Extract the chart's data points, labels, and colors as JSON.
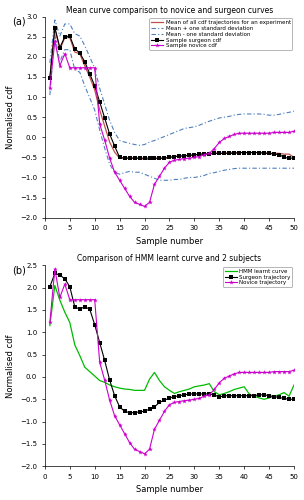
{
  "title_a": "Mean curve comparison to novice and surgeon curves",
  "title_b": "Comparison of HMM learnt curve and 2 subjects",
  "xlabel": "Sample number",
  "ylabel": "Normalised cdf",
  "xlim": [
    0,
    50
  ],
  "ylim_a": [
    -2,
    3
  ],
  "ylim_b": [
    -2,
    2.5
  ],
  "xticks": [
    0,
    5,
    10,
    15,
    20,
    25,
    30,
    35,
    40,
    45,
    50
  ],
  "yticks_a": [
    -2,
    -1.5,
    -1,
    -0.5,
    0,
    0.5,
    1,
    1.5,
    2,
    2.5,
    3
  ],
  "yticks_b": [
    -2,
    -1.5,
    -1,
    -0.5,
    0,
    0.5,
    1,
    1.5,
    2,
    2.5
  ],
  "mean_color": "#c0504d",
  "std_color": "#4f81bd",
  "surgeon_color": "#000000",
  "novice_color": "#cc00cc",
  "hmm_color": "#00bb00",
  "x": [
    1,
    2,
    3,
    4,
    5,
    6,
    7,
    8,
    9,
    10,
    11,
    12,
    13,
    14,
    15,
    16,
    17,
    18,
    19,
    20,
    21,
    22,
    23,
    24,
    25,
    26,
    27,
    28,
    29,
    30,
    31,
    32,
    33,
    34,
    35,
    36,
    37,
    38,
    39,
    40,
    41,
    42,
    43,
    44,
    45,
    46,
    47,
    48,
    49,
    50
  ],
  "mean": [
    1.47,
    2.72,
    2.18,
    2.48,
    2.48,
    2.12,
    2.08,
    1.78,
    1.5,
    1.18,
    0.68,
    0.28,
    -0.12,
    -0.37,
    -0.52,
    -0.52,
    -0.52,
    -0.52,
    -0.52,
    -0.55,
    -0.55,
    -0.53,
    -0.53,
    -0.52,
    -0.5,
    -0.48,
    -0.47,
    -0.46,
    -0.45,
    -0.44,
    -0.42,
    -0.41,
    -0.4,
    -0.4,
    -0.4,
    -0.4,
    -0.38,
    -0.38,
    -0.38,
    -0.38,
    -0.38,
    -0.38,
    -0.38,
    -0.38,
    -0.4,
    -0.4,
    -0.4,
    -0.42,
    -0.42,
    -0.5
  ],
  "std_plus": [
    1.85,
    2.92,
    2.52,
    2.82,
    2.82,
    2.58,
    2.52,
    2.28,
    2.0,
    1.72,
    1.22,
    0.82,
    0.42,
    0.12,
    -0.08,
    -0.12,
    -0.15,
    -0.18,
    -0.2,
    -0.18,
    -0.12,
    -0.08,
    -0.03,
    0.02,
    0.07,
    0.12,
    0.17,
    0.22,
    0.24,
    0.26,
    0.3,
    0.35,
    0.4,
    0.44,
    0.48,
    0.5,
    0.52,
    0.55,
    0.57,
    0.58,
    0.58,
    0.58,
    0.58,
    0.57,
    0.55,
    0.55,
    0.57,
    0.6,
    0.62,
    0.65
  ],
  "std_minus": [
    1.05,
    2.55,
    1.88,
    2.18,
    2.18,
    1.68,
    1.62,
    1.28,
    0.98,
    0.68,
    0.18,
    -0.27,
    -0.67,
    -0.87,
    -0.92,
    -0.88,
    -0.85,
    -0.87,
    -0.87,
    -0.92,
    -0.97,
    -1.02,
    -1.07,
    -1.07,
    -1.07,
    -1.05,
    -1.05,
    -1.02,
    -1.0,
    -1.0,
    -0.98,
    -0.95,
    -0.9,
    -0.88,
    -0.85,
    -0.82,
    -0.8,
    -0.78,
    -0.77,
    -0.77,
    -0.77,
    -0.77,
    -0.77,
    -0.77,
    -0.77,
    -0.77,
    -0.77,
    -0.77,
    -0.77,
    -0.77
  ],
  "surgeon_a": [
    1.48,
    2.73,
    2.23,
    2.5,
    2.52,
    2.2,
    2.1,
    1.88,
    1.58,
    1.28,
    0.88,
    0.48,
    0.08,
    -0.22,
    -0.5,
    -0.52,
    -0.52,
    -0.52,
    -0.52,
    -0.52,
    -0.52,
    -0.52,
    -0.52,
    -0.52,
    -0.5,
    -0.48,
    -0.47,
    -0.46,
    -0.45,
    -0.44,
    -0.42,
    -0.42,
    -0.42,
    -0.4,
    -0.4,
    -0.4,
    -0.4,
    -0.4,
    -0.38,
    -0.38,
    -0.38,
    -0.38,
    -0.38,
    -0.4,
    -0.4,
    -0.42,
    -0.43,
    -0.5,
    -0.52,
    -0.52
  ],
  "novice_a": [
    1.22,
    2.4,
    1.78,
    2.08,
    1.73,
    1.73,
    1.73,
    1.73,
    1.73,
    1.73,
    0.33,
    -0.07,
    -0.52,
    -0.87,
    -1.07,
    -1.27,
    -1.47,
    -1.62,
    -1.67,
    -1.72,
    -1.62,
    -1.17,
    -0.97,
    -0.77,
    -0.62,
    -0.57,
    -0.55,
    -0.53,
    -0.52,
    -0.5,
    -0.48,
    -0.43,
    -0.4,
    -0.28,
    -0.13,
    -0.03,
    0.02,
    0.07,
    0.1,
    0.1,
    0.1,
    0.1,
    0.1,
    0.1,
    0.1,
    0.12,
    0.12,
    0.12,
    0.12,
    0.15
  ],
  "hmm": [
    1.15,
    2.05,
    1.72,
    1.45,
    1.22,
    0.72,
    0.48,
    0.22,
    0.12,
    0.02,
    -0.08,
    -0.12,
    -0.18,
    -0.22,
    -0.25,
    -0.27,
    -0.28,
    -0.3,
    -0.3,
    -0.3,
    -0.05,
    0.1,
    -0.08,
    -0.22,
    -0.3,
    -0.37,
    -0.33,
    -0.3,
    -0.27,
    -0.22,
    -0.2,
    -0.18,
    -0.15,
    -0.33,
    -0.4,
    -0.37,
    -0.33,
    -0.28,
    -0.25,
    -0.22,
    -0.38,
    -0.43,
    -0.47,
    -0.5,
    -0.47,
    -0.43,
    -0.4,
    -0.35,
    -0.43,
    -0.18
  ],
  "surgeon_b": [
    2.02,
    2.32,
    2.28,
    2.2,
    2.02,
    1.57,
    1.52,
    1.57,
    1.52,
    1.17,
    0.77,
    0.37,
    -0.07,
    -0.42,
    -0.67,
    -0.77,
    -0.8,
    -0.8,
    -0.78,
    -0.77,
    -0.72,
    -0.67,
    -0.57,
    -0.52,
    -0.47,
    -0.44,
    -0.42,
    -0.4,
    -0.38,
    -0.38,
    -0.38,
    -0.38,
    -0.38,
    -0.4,
    -0.45,
    -0.42,
    -0.42,
    -0.42,
    -0.42,
    -0.42,
    -0.42,
    -0.42,
    -0.4,
    -0.4,
    -0.42,
    -0.44,
    -0.46,
    -0.48,
    -0.5,
    -0.5
  ],
  "novice_b": [
    1.22,
    2.42,
    1.78,
    2.08,
    1.73,
    1.73,
    1.73,
    1.73,
    1.73,
    1.73,
    0.33,
    -0.07,
    -0.52,
    -0.87,
    -1.07,
    -1.27,
    -1.47,
    -1.62,
    -1.67,
    -1.72,
    -1.62,
    -1.17,
    -0.97,
    -0.77,
    -0.62,
    -0.57,
    -0.55,
    -0.53,
    -0.52,
    -0.5,
    -0.48,
    -0.43,
    -0.4,
    -0.28,
    -0.13,
    -0.03,
    0.02,
    0.07,
    0.1,
    0.1,
    0.1,
    0.1,
    0.1,
    0.1,
    0.1,
    0.12,
    0.12,
    0.12,
    0.12,
    0.15
  ],
  "legend_a_labels": [
    "Mean of all cdf trajectories for an experiment",
    "Mean + one standard deviation",
    "Mean - one standard deviation",
    "Sample surgeon cdf",
    "Sample novice cdf"
  ],
  "legend_b_labels": [
    "HMM learnt curve",
    "Surgeon trajectory",
    "Novice trajectory"
  ]
}
